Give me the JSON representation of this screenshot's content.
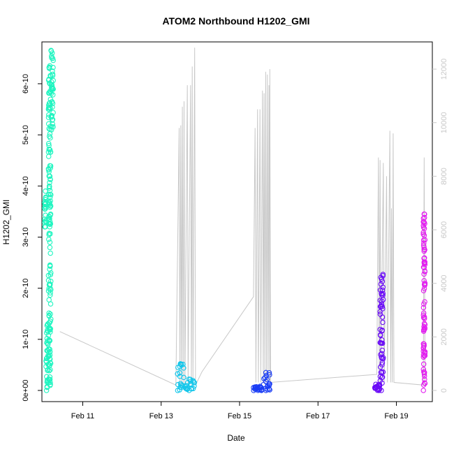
{
  "chart_data": {
    "type": "scatter",
    "title": "ATOM2 Northbound H1202_GMI",
    "xlabel": "Date",
    "ylabel": "H1202_GMI",
    "x_axis": {
      "type": "date",
      "range": [
        "2023-02-09T23:00",
        "2023-02-19T22:00"
      ],
      "ticks": [
        {
          "value": "2023-02-11T00:00",
          "label": "Feb 11"
        },
        {
          "value": "2023-02-13T00:00",
          "label": "Feb 13"
        },
        {
          "value": "2023-02-15T00:00",
          "label": "Feb 15"
        },
        {
          "value": "2023-02-17T00:00",
          "label": "Feb 17"
        },
        {
          "value": "2023-02-19T00:00",
          "label": "Feb 19"
        }
      ]
    },
    "y_axis": {
      "range": [
        0,
        6.6e-10
      ],
      "ticks": [
        {
          "value": 0,
          "label": "0e+00"
        },
        {
          "value": 1e-10,
          "label": "1e-10"
        },
        {
          "value": 2e-10,
          "label": "2e-10"
        },
        {
          "value": 3e-10,
          "label": "3e-10"
        },
        {
          "value": 4e-10,
          "label": "4e-10"
        },
        {
          "value": 5e-10,
          "label": "5e-10"
        },
        {
          "value": 6e-10,
          "label": "6e-10"
        }
      ]
    },
    "y2_axis": {
      "range": [
        0,
        12600
      ],
      "color": "#c8c8c8",
      "ticks": [
        {
          "value": 0,
          "label": "0"
        },
        {
          "value": 2000,
          "label": "2000"
        },
        {
          "value": 4000,
          "label": "4000"
        },
        {
          "value": 6000,
          "label": "6000"
        },
        {
          "value": 8000,
          "label": "8000"
        },
        {
          "value": 10000,
          "label": "10000"
        },
        {
          "value": 12000,
          "label": "12000"
        }
      ]
    },
    "grid": false,
    "secondary_line": {
      "axis": "y2",
      "color": "#c8c8c8",
      "points": [
        [
          "2023-02-10T10:00",
          2200
        ],
        [
          "2023-02-13T09:00",
          200
        ],
        [
          "2023-02-13T11:00",
          9800
        ],
        [
          "2023-02-13T11:30",
          200
        ],
        [
          "2023-02-13T12:00",
          9900
        ],
        [
          "2023-02-13T12:30",
          200
        ],
        [
          "2023-02-13T13:00",
          10600
        ],
        [
          "2023-02-13T13:30",
          200
        ],
        [
          "2023-02-13T14:00",
          10800
        ],
        [
          "2023-02-13T14:30",
          200
        ],
        [
          "2023-02-13T16:00",
          11400
        ],
        [
          "2023-02-13T16:30",
          200
        ],
        [
          "2023-02-13T18:00",
          11400
        ],
        [
          "2023-02-13T18:30",
          200
        ],
        [
          "2023-02-13T19:00",
          12100
        ],
        [
          "2023-02-13T19:30",
          300
        ],
        [
          "2023-02-13T20:30",
          12800
        ],
        [
          "2023-02-13T21:00",
          200
        ],
        [
          "2023-02-14T01:00",
          700
        ],
        [
          "2023-02-15T08:30",
          3500
        ],
        [
          "2023-02-15T09:30",
          9800
        ],
        [
          "2023-02-15T10:00",
          300
        ],
        [
          "2023-02-15T11:00",
          10500
        ],
        [
          "2023-02-15T11:30",
          300
        ],
        [
          "2023-02-15T12:30",
          10500
        ],
        [
          "2023-02-15T13:00",
          300
        ],
        [
          "2023-02-15T14:00",
          11200
        ],
        [
          "2023-02-15T14:30",
          300
        ],
        [
          "2023-02-15T15:00",
          11100
        ],
        [
          "2023-02-15T15:30",
          300
        ],
        [
          "2023-02-15T16:00",
          11900
        ],
        [
          "2023-02-15T16:30",
          300
        ],
        [
          "2023-02-15T17:00",
          11800
        ],
        [
          "2023-02-15T17:30",
          300
        ],
        [
          "2023-02-15T18:00",
          11400
        ],
        [
          "2023-02-15T18:30",
          300
        ],
        [
          "2023-02-15T18:30",
          12000
        ],
        [
          "2023-02-15T19:00",
          300
        ],
        [
          "2023-02-18T12:00",
          600
        ],
        [
          "2023-02-18T13:00",
          8700
        ],
        [
          "2023-02-18T13:30",
          300
        ],
        [
          "2023-02-18T14:00",
          8600
        ],
        [
          "2023-02-18T14:30",
          300
        ],
        [
          "2023-02-18T16:00",
          8500
        ],
        [
          "2023-02-18T16:30",
          300
        ],
        [
          "2023-02-18T18:00",
          8000
        ],
        [
          "2023-02-18T18:30",
          300
        ],
        [
          "2023-02-18T20:00",
          9700
        ],
        [
          "2023-02-18T20:30",
          300
        ],
        [
          "2023-02-18T21:00",
          6800
        ],
        [
          "2023-02-18T21:30",
          300
        ],
        [
          "2023-02-18T22:00",
          9600
        ],
        [
          "2023-02-18T22:30",
          300
        ],
        [
          "2023-02-19T16:30",
          200
        ],
        [
          "2023-02-19T17:00",
          8700
        ],
        [
          "2023-02-19T17:30",
          200
        ]
      ]
    },
    "series": [
      {
        "color": "#1ef5c0",
        "segments": [
          {
            "start": "2023-02-10T00:30",
            "end": "2023-02-10T01:30",
            "min": 3.2e-10,
            "max": 3.9e-10
          },
          {
            "start": "2023-02-10T01:30",
            "end": "2023-02-10T03:00",
            "min": 0.0,
            "max": 1.3e-10
          },
          {
            "start": "2023-02-10T03:00",
            "end": "2023-02-10T04:30",
            "min": 1e-11,
            "max": 6.35e-10
          },
          {
            "start": "2023-02-10T04:30",
            "end": "2023-02-10T06:00",
            "min": 5.1e-10,
            "max": 6.65e-10
          }
        ]
      },
      {
        "color": "#12c6ea",
        "segments": [
          {
            "start": "2023-02-13T10:00",
            "end": "2023-02-13T14:00",
            "min": 0.0,
            "max": 5.2e-11
          },
          {
            "start": "2023-02-13T14:00",
            "end": "2023-02-13T21:00",
            "min": 0.0,
            "max": 2.2e-11
          }
        ]
      },
      {
        "color": "#1a3df5",
        "segments": [
          {
            "start": "2023-02-15T08:30",
            "end": "2023-02-15T14:00",
            "min": 0.0,
            "max": 8e-12
          },
          {
            "start": "2023-02-15T14:00",
            "end": "2023-02-15T18:30",
            "min": 0.0,
            "max": 3.5e-11
          }
        ]
      },
      {
        "color": "#6a0bf7",
        "segments": [
          {
            "start": "2023-02-18T10:30",
            "end": "2023-02-18T14:00",
            "min": 0.0,
            "max": 1.2e-11
          },
          {
            "start": "2023-02-18T14:00",
            "end": "2023-02-18T16:00",
            "min": 0.0,
            "max": 2.27e-10
          }
        ]
      },
      {
        "color": "#e21cf0",
        "segments": [
          {
            "start": "2023-02-19T16:30",
            "end": "2023-02-19T17:30",
            "min": 0.0,
            "max": 3.45e-10
          }
        ]
      }
    ]
  }
}
